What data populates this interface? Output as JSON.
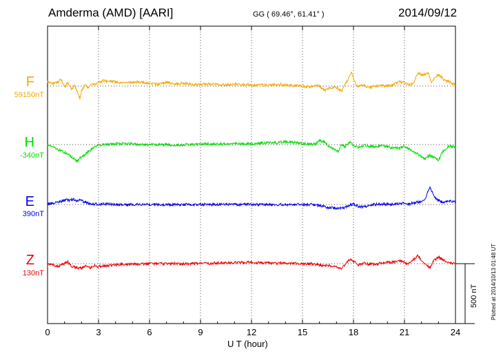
{
  "header": {
    "title": "Amderma (AMD)  [AARI]",
    "coords": "GG ( 69.46°,  61.41° )",
    "date": "2014/09/12"
  },
  "plotted_note": "Plotted at 2014/10/13 01:48 UT",
  "scale_label": "500 nT",
  "chart_data": {
    "type": "line",
    "xlabel": "U T (hour)",
    "xlim": [
      0,
      24
    ],
    "xticks": [
      0,
      3,
      6,
      9,
      12,
      15,
      18,
      21,
      24
    ],
    "scale_bar_nT": 500,
    "series": [
      {
        "name": "F",
        "baseline_label": "59150nT",
        "color": "#f5a800",
        "points": [
          [
            0,
            40
          ],
          [
            0.3,
            20
          ],
          [
            0.6,
            35
          ],
          [
            0.8,
            55
          ],
          [
            1.0,
            -10
          ],
          [
            1.2,
            30
          ],
          [
            1.4,
            -20
          ],
          [
            1.6,
            0
          ],
          [
            1.8,
            -60
          ],
          [
            1.9,
            -110
          ],
          [
            2.0,
            -40
          ],
          [
            2.2,
            10
          ],
          [
            2.4,
            -20
          ],
          [
            2.6,
            25
          ],
          [
            2.8,
            10
          ],
          [
            3.0,
            30
          ],
          [
            3.3,
            45
          ],
          [
            3.6,
            40
          ],
          [
            4.0,
            35
          ],
          [
            4.5,
            25
          ],
          [
            5.0,
            30
          ],
          [
            5.5,
            35
          ],
          [
            6.0,
            20
          ],
          [
            6.5,
            15
          ],
          [
            7.0,
            30
          ],
          [
            7.5,
            20
          ],
          [
            8.0,
            25
          ],
          [
            8.5,
            15
          ],
          [
            9.0,
            10
          ],
          [
            9.5,
            20
          ],
          [
            10.0,
            15
          ],
          [
            10.5,
            10
          ],
          [
            11.0,
            15
          ],
          [
            11.5,
            10
          ],
          [
            12.0,
            5
          ],
          [
            12.5,
            10
          ],
          [
            13.0,
            5
          ],
          [
            13.5,
            15
          ],
          [
            14.0,
            10
          ],
          [
            14.5,
            5
          ],
          [
            15.0,
            0
          ],
          [
            15.5,
            -5
          ],
          [
            16.0,
            0
          ],
          [
            16.3,
            -40
          ],
          [
            16.5,
            -20
          ],
          [
            17.0,
            -10
          ],
          [
            17.3,
            -45
          ],
          [
            17.5,
            10
          ],
          [
            17.7,
            60
          ],
          [
            17.9,
            115
          ],
          [
            18.0,
            60
          ],
          [
            18.2,
            0
          ],
          [
            18.5,
            5
          ],
          [
            19.0,
            -10
          ],
          [
            19.5,
            5
          ],
          [
            20.0,
            0
          ],
          [
            20.3,
            10
          ],
          [
            20.7,
            35
          ],
          [
            21.0,
            30
          ],
          [
            21.3,
            10
          ],
          [
            21.5,
            25
          ],
          [
            21.8,
            110
          ],
          [
            22.1,
            90
          ],
          [
            22.4,
            110
          ],
          [
            22.6,
            30
          ],
          [
            22.8,
            75
          ],
          [
            23.0,
            95
          ],
          [
            23.3,
            55
          ],
          [
            23.6,
            40
          ],
          [
            24.0,
            10
          ]
        ]
      },
      {
        "name": "H",
        "baseline_label": "-340nT",
        "color": "#00dd00",
        "points": [
          [
            0,
            0
          ],
          [
            0.3,
            -15
          ],
          [
            0.6,
            -40
          ],
          [
            0.9,
            -60
          ],
          [
            1.2,
            -80
          ],
          [
            1.5,
            -110
          ],
          [
            1.7,
            -140
          ],
          [
            1.9,
            -115
          ],
          [
            2.1,
            -95
          ],
          [
            2.4,
            -60
          ],
          [
            2.7,
            -25
          ],
          [
            3.0,
            -5
          ],
          [
            3.3,
            0
          ],
          [
            4.0,
            5
          ],
          [
            4.5,
            10
          ],
          [
            5.0,
            5
          ],
          [
            5.5,
            0
          ],
          [
            6.0,
            0
          ],
          [
            6.5,
            0
          ],
          [
            7.0,
            0
          ],
          [
            7.5,
            -5
          ],
          [
            8.0,
            0
          ],
          [
            8.5,
            0
          ],
          [
            9.0,
            0
          ],
          [
            9.5,
            5
          ],
          [
            10.0,
            5
          ],
          [
            10.5,
            5
          ],
          [
            11.0,
            10
          ],
          [
            11.5,
            5
          ],
          [
            12.0,
            5
          ],
          [
            12.5,
            10
          ],
          [
            13.0,
            15
          ],
          [
            13.5,
            15
          ],
          [
            14.0,
            25
          ],
          [
            14.5,
            20
          ],
          [
            15.0,
            10
          ],
          [
            15.5,
            5
          ],
          [
            15.8,
            5
          ],
          [
            16.0,
            35
          ],
          [
            16.3,
            20
          ],
          [
            16.6,
            -20
          ],
          [
            16.9,
            -40
          ],
          [
            17.1,
            -55
          ],
          [
            17.3,
            0
          ],
          [
            17.5,
            -20
          ],
          [
            17.8,
            25
          ],
          [
            18.0,
            -10
          ],
          [
            18.3,
            -20
          ],
          [
            18.7,
            -5
          ],
          [
            19.2,
            -20
          ],
          [
            19.7,
            -10
          ],
          [
            20.2,
            -25
          ],
          [
            20.7,
            -30
          ],
          [
            21.0,
            -10
          ],
          [
            21.3,
            -40
          ],
          [
            21.6,
            -60
          ],
          [
            21.8,
            -80
          ],
          [
            22.0,
            -100
          ],
          [
            22.2,
            -120
          ],
          [
            22.5,
            -90
          ],
          [
            22.8,
            -110
          ],
          [
            23.0,
            -130
          ],
          [
            23.3,
            -50
          ],
          [
            23.6,
            -10
          ],
          [
            24.0,
            -25
          ]
        ]
      },
      {
        "name": "E",
        "baseline_label": "390nT",
        "color": "#0000ee",
        "points": [
          [
            0,
            0
          ],
          [
            0.3,
            10
          ],
          [
            0.6,
            20
          ],
          [
            0.9,
            30
          ],
          [
            1.1,
            40
          ],
          [
            1.3,
            30
          ],
          [
            1.5,
            45
          ],
          [
            1.7,
            30
          ],
          [
            1.9,
            40
          ],
          [
            2.1,
            25
          ],
          [
            2.4,
            10
          ],
          [
            2.7,
            5
          ],
          [
            3.0,
            0
          ],
          [
            3.5,
            5
          ],
          [
            4.0,
            0
          ],
          [
            5.0,
            0
          ],
          [
            6.0,
            0
          ],
          [
            7.0,
            0
          ],
          [
            8.0,
            0
          ],
          [
            9.0,
            0
          ],
          [
            10.0,
            0
          ],
          [
            11.0,
            0
          ],
          [
            12.0,
            0
          ],
          [
            13.0,
            0
          ],
          [
            14.0,
            0
          ],
          [
            15.0,
            0
          ],
          [
            15.5,
            0
          ],
          [
            16.0,
            -10
          ],
          [
            16.5,
            -25
          ],
          [
            17.0,
            -30
          ],
          [
            17.5,
            -25
          ],
          [
            17.8,
            -5
          ],
          [
            18.0,
            5
          ],
          [
            18.3,
            -15
          ],
          [
            18.6,
            -20
          ],
          [
            19.0,
            -5
          ],
          [
            19.5,
            5
          ],
          [
            20.0,
            0
          ],
          [
            20.5,
            5
          ],
          [
            21.0,
            10
          ],
          [
            21.3,
            5
          ],
          [
            21.6,
            15
          ],
          [
            21.9,
            20
          ],
          [
            22.2,
            40
          ],
          [
            22.5,
            150
          ],
          [
            22.7,
            80
          ],
          [
            22.9,
            40
          ],
          [
            23.2,
            20
          ],
          [
            23.5,
            30
          ],
          [
            24.0,
            25
          ]
        ]
      },
      {
        "name": "Z",
        "baseline_label": "130nT",
        "color": "#ee0000",
        "points": [
          [
            0,
            0
          ],
          [
            0.3,
            -10
          ],
          [
            0.6,
            -25
          ],
          [
            0.9,
            -5
          ],
          [
            1.2,
            15
          ],
          [
            1.4,
            -20
          ],
          [
            1.7,
            -30
          ],
          [
            2.0,
            -40
          ],
          [
            2.2,
            -20
          ],
          [
            2.5,
            -35
          ],
          [
            2.8,
            -15
          ],
          [
            3.0,
            -25
          ],
          [
            3.5,
            -15
          ],
          [
            4.0,
            -10
          ],
          [
            4.5,
            -5
          ],
          [
            5.0,
            -5
          ],
          [
            6.0,
            0
          ],
          [
            7.0,
            0
          ],
          [
            8.0,
            0
          ],
          [
            9.0,
            0
          ],
          [
            10.0,
            5
          ],
          [
            11.0,
            10
          ],
          [
            12.0,
            10
          ],
          [
            13.0,
            5
          ],
          [
            14.0,
            5
          ],
          [
            15.0,
            0
          ],
          [
            15.5,
            0
          ],
          [
            15.8,
            -5
          ],
          [
            16.2,
            -20
          ],
          [
            16.5,
            -15
          ],
          [
            17.0,
            -25
          ],
          [
            17.3,
            -40
          ],
          [
            17.5,
            -10
          ],
          [
            17.8,
            40
          ],
          [
            18.0,
            20
          ],
          [
            18.3,
            -10
          ],
          [
            18.6,
            5
          ],
          [
            19.0,
            -5
          ],
          [
            19.5,
            0
          ],
          [
            20.0,
            10
          ],
          [
            20.5,
            15
          ],
          [
            20.8,
            25
          ],
          [
            21.2,
            -5
          ],
          [
            21.5,
            30
          ],
          [
            21.8,
            70
          ],
          [
            22.0,
            25
          ],
          [
            22.3,
            -10
          ],
          [
            22.5,
            -35
          ],
          [
            22.7,
            20
          ],
          [
            23.0,
            55
          ],
          [
            23.3,
            30
          ],
          [
            23.6,
            15
          ],
          [
            24.0,
            -5
          ]
        ]
      }
    ]
  }
}
